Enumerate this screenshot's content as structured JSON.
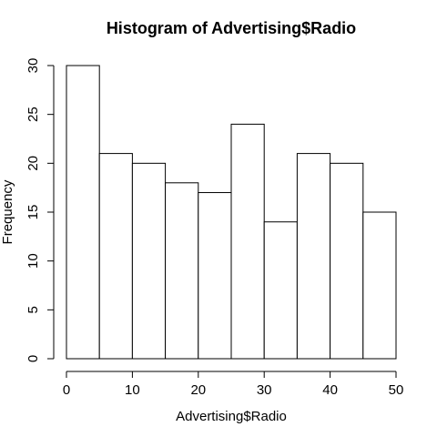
{
  "chart_data": {
    "type": "bar",
    "title": "Histogram of Advertising$Radio",
    "xlabel": "Advertising$Radio",
    "ylabel": "Frequency",
    "bins": [
      {
        "start": 0,
        "end": 5,
        "count": 30
      },
      {
        "start": 5,
        "end": 10,
        "count": 21
      },
      {
        "start": 10,
        "end": 15,
        "count": 20
      },
      {
        "start": 15,
        "end": 20,
        "count": 18
      },
      {
        "start": 20,
        "end": 25,
        "count": 17
      },
      {
        "start": 25,
        "end": 30,
        "count": 24
      },
      {
        "start": 30,
        "end": 35,
        "count": 14
      },
      {
        "start": 35,
        "end": 40,
        "count": 21
      },
      {
        "start": 40,
        "end": 45,
        "count": 20
      },
      {
        "start": 45,
        "end": 50,
        "count": 15
      }
    ],
    "xlim": [
      0,
      50
    ],
    "ylim": [
      0,
      30
    ],
    "x_ticks": [
      0,
      10,
      20,
      30,
      40,
      50
    ],
    "y_ticks": [
      0,
      5,
      10,
      15,
      20,
      25,
      30
    ],
    "grid": false,
    "bar_fill": "#ffffff",
    "bar_stroke": "#000000"
  }
}
